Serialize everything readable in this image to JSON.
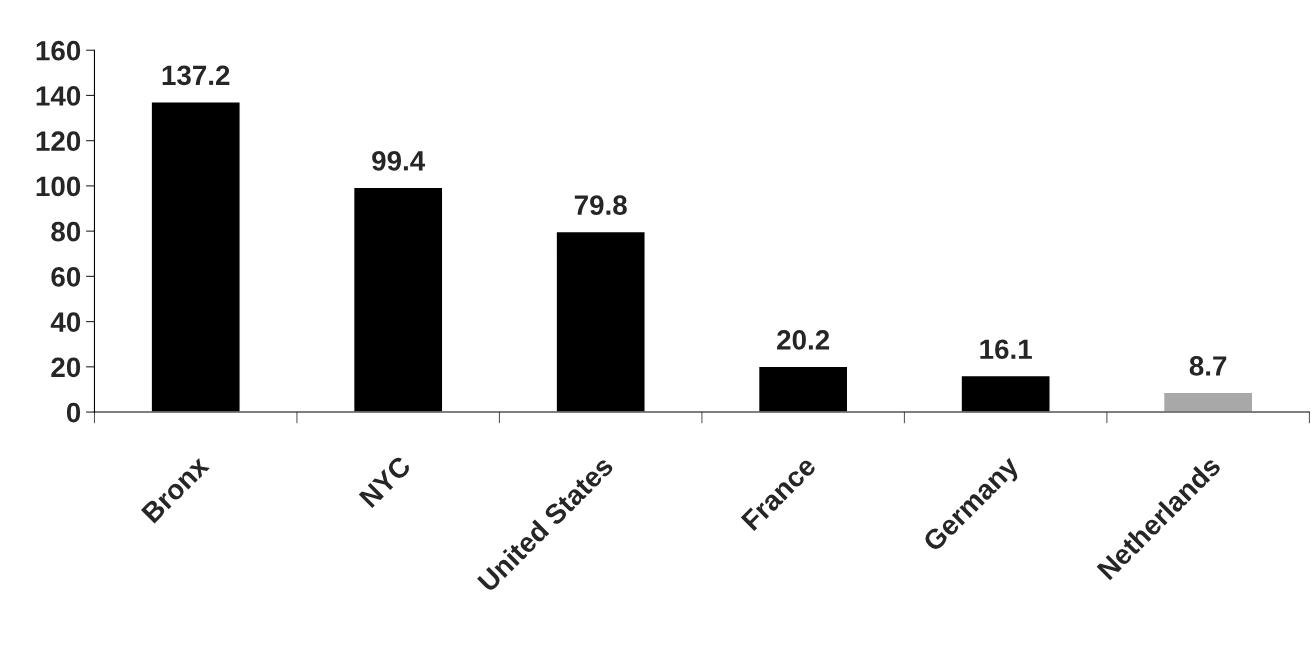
{
  "chart_data": {
    "type": "bar",
    "categories": [
      "Bronx",
      "NYC",
      "United States",
      "France",
      "Germany",
      "Netherlands"
    ],
    "values": [
      137.2,
      99.4,
      79.8,
      20.2,
      16.1,
      8.7
    ],
    "colors": [
      "#000000",
      "#000000",
      "#000000",
      "#000000",
      "#000000",
      "#a8a8a8"
    ],
    "ylim": [
      0,
      160
    ],
    "yticks": [
      0,
      20,
      40,
      60,
      80,
      100,
      120,
      140,
      160
    ],
    "data_labels": true,
    "grid": false,
    "legend": false
  }
}
